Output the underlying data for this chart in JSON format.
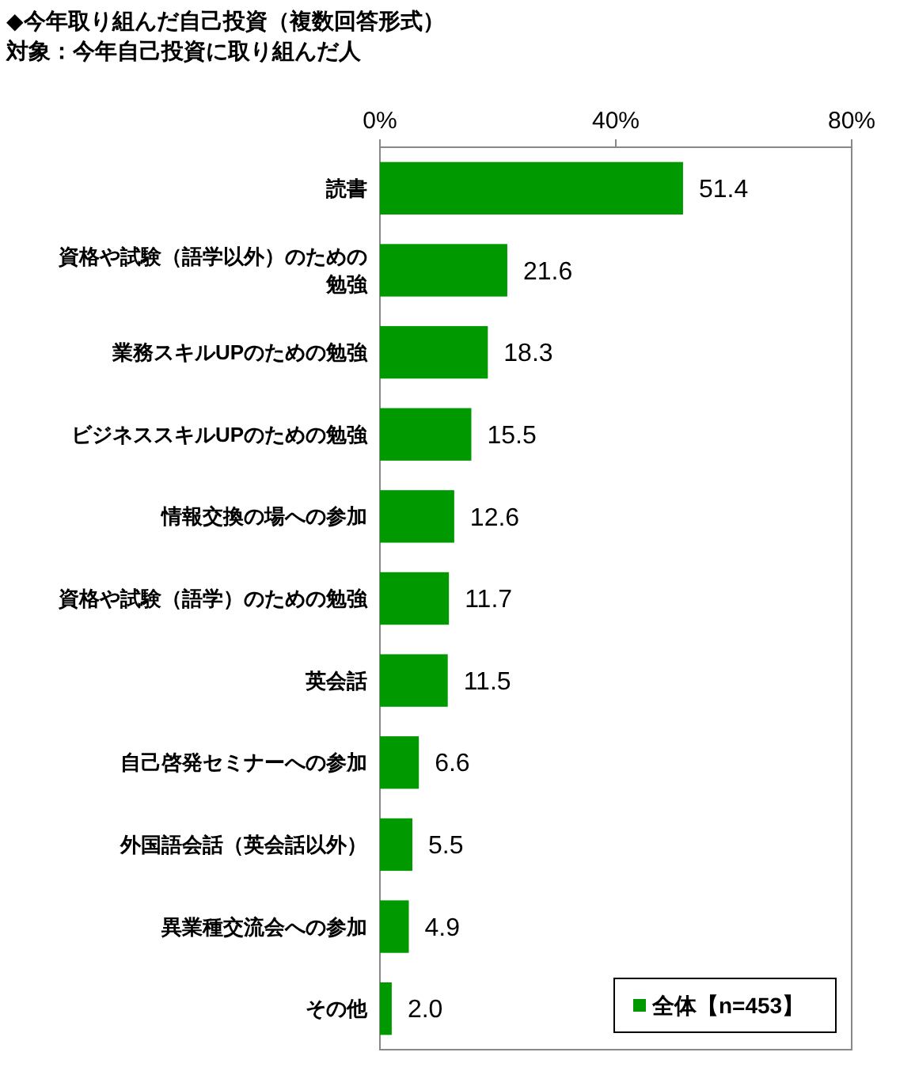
{
  "chart_data": {
    "type": "bar",
    "orientation": "horizontal",
    "title": "◆今年取り組んだ自己投資（複数回答形式）",
    "subtitle": "対象：今年自己投資に取り組んだ人",
    "categories": [
      "読書",
      "資格や試験（語学以外）のための勉強",
      "業務スキルUPのための勉強",
      "ビジネススキルUPのための勉強",
      "情報交換の場への参加",
      "資格や試験（語学）のための勉強",
      "英会話",
      "自己啓発セミナーへの参加",
      "外国語会話（英会話以外）",
      "異業種交流会への参加",
      "その他"
    ],
    "series": [
      {
        "name": "全体【n=453】",
        "color": "#009900",
        "values": [
          51.4,
          21.6,
          18.3,
          15.5,
          12.6,
          11.7,
          11.5,
          6.6,
          5.5,
          4.9,
          2.0
        ]
      }
    ],
    "xlim": [
      0,
      80
    ],
    "xticks": [
      {
        "value": 0,
        "label": "0%"
      },
      {
        "value": 40,
        "label": "40%"
      },
      {
        "value": 80,
        "label": "80%"
      }
    ],
    "value_labels": [
      "51.4",
      "21.6",
      "18.3",
      "15.5",
      "12.6",
      "11.7",
      "11.5",
      "6.6",
      "5.5",
      "4.9",
      "2.0"
    ],
    "legend": "bottom right",
    "grid": false
  }
}
